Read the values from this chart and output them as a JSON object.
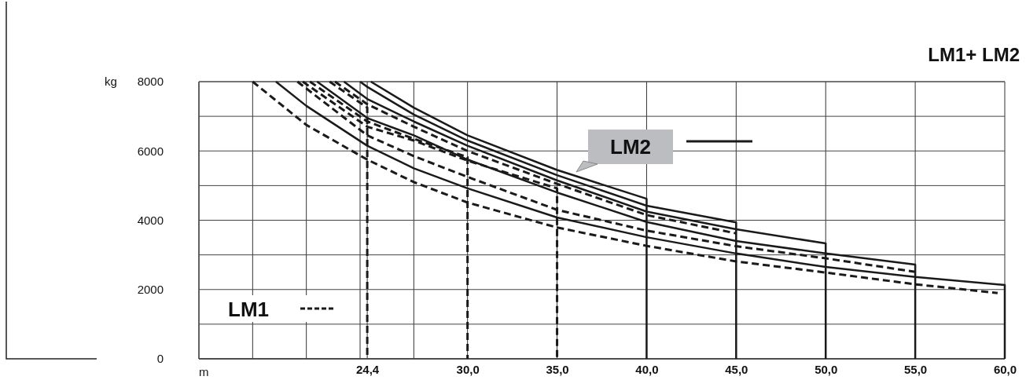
{
  "chart_data": {
    "type": "line",
    "title": "LM1+ LM2",
    "xlabel": "m",
    "ylabel": "kg",
    "xlim": [
      15,
      60
    ],
    "ylim": [
      0,
      8000
    ],
    "xticks": [
      {
        "value": 15,
        "label": null
      },
      {
        "value": 18,
        "label": null
      },
      {
        "value": 21,
        "label": null
      },
      {
        "value": 24,
        "label": null
      },
      {
        "value": 24.4,
        "label": "24,4"
      },
      {
        "value": 27,
        "label": null
      },
      {
        "value": 30,
        "label": "30,0"
      },
      {
        "value": 35,
        "label": "35,0"
      },
      {
        "value": 40,
        "label": "40,0"
      },
      {
        "value": 45,
        "label": "45,0"
      },
      {
        "value": 50,
        "label": "50,0"
      },
      {
        "value": 55,
        "label": "55,0"
      },
      {
        "value": 60,
        "label": "60,0"
      }
    ],
    "yticks": [
      0,
      {
        "value": 1000,
        "label": null
      },
      2000,
      {
        "value": 3000,
        "label": null
      },
      4000,
      {
        "value": 5000,
        "label": null
      },
      6000,
      {
        "value": 7000,
        "label": null
      },
      8000
    ],
    "grid": true,
    "legend": "left",
    "series": [
      {
        "name": "LM1",
        "color": "#1a1a1a",
        "line_style": "dashed",
        "x": [
          18.0,
          21,
          24.4,
          27,
          30,
          35,
          40,
          45,
          50,
          55,
          59.6
        ],
        "values": [
          8000,
          6750,
          5750,
          5100,
          4510,
          3790,
          3260,
          2810,
          2490,
          2150,
          1900
        ]
      },
      {
        "name": "LM2",
        "color": "#1a1a1a",
        "line_style": "solid",
        "x": [
          19.3,
          21,
          24.4,
          27,
          30,
          35,
          40,
          45,
          50,
          55,
          60,
          60
        ],
        "values": [
          8000,
          7300,
          6150,
          5500,
          4920,
          4080,
          3510,
          3040,
          2650,
          2360,
          2130,
          0
        ]
      },
      {
        "color": "#1a1a1a",
        "line_style": "dashed",
        "x": [
          20.5,
          24.4,
          27,
          30,
          35,
          40,
          45,
          50,
          55
        ],
        "values": [
          8000,
          6450,
          5850,
          5250,
          4300,
          3700,
          3250,
          2900,
          2510
        ]
      },
      {
        "color": "#1a1a1a",
        "line_style": "dashed",
        "x": [
          20.8,
          24.4,
          27,
          30,
          35,
          35
        ],
        "values": [
          8000,
          6700,
          6300,
          5720,
          4920,
          0
        ]
      },
      {
        "color": "#1a1a1a",
        "line_style": "dashed",
        "x": [
          21.2,
          24.4,
          27,
          30,
          30
        ],
        "values": [
          8000,
          6850,
          6350,
          5820,
          0
        ]
      },
      {
        "color": "#1a1a1a",
        "line_style": "solid",
        "x": [
          21.6,
          24.4,
          27,
          30,
          35,
          40,
          45,
          50,
          55,
          55
        ],
        "values": [
          8000,
          6950,
          6450,
          5750,
          4800,
          3950,
          3400,
          3040,
          2720,
          0
        ]
      },
      {
        "color": "#1a1a1a",
        "line_style": "dashed",
        "x": [
          22.3,
          24.4,
          24.4
        ],
        "values": [
          8000,
          7250,
          0
        ]
      },
      {
        "color": "#1a1a1a",
        "line_style": "dashed",
        "x": [
          22.6,
          24.4,
          27,
          30,
          35,
          40,
          45
        ],
        "values": [
          8000,
          7350,
          6700,
          6000,
          5050,
          4150,
          3620
        ]
      },
      {
        "color": "#1a1a1a",
        "line_style": "solid",
        "x": [
          23.1,
          24.4,
          27,
          30,
          35,
          40,
          45,
          50,
          50
        ],
        "values": [
          8000,
          7500,
          6850,
          6150,
          5150,
          4250,
          3740,
          3330,
          0
        ]
      },
      {
        "color": "#1a1a1a",
        "line_style": "solid",
        "x": [
          24.0,
          24.4,
          27,
          30,
          35,
          40,
          45,
          45
        ],
        "values": [
          8000,
          7850,
          7050,
          6300,
          5300,
          4420,
          3940,
          0
        ]
      },
      {
        "color": "#1a1a1a",
        "line_style": "solid",
        "x": [
          24.6,
          27,
          30,
          35,
          40,
          40
        ],
        "values": [
          8000,
          7250,
          6450,
          5450,
          4620,
          0
        ]
      }
    ]
  }
}
